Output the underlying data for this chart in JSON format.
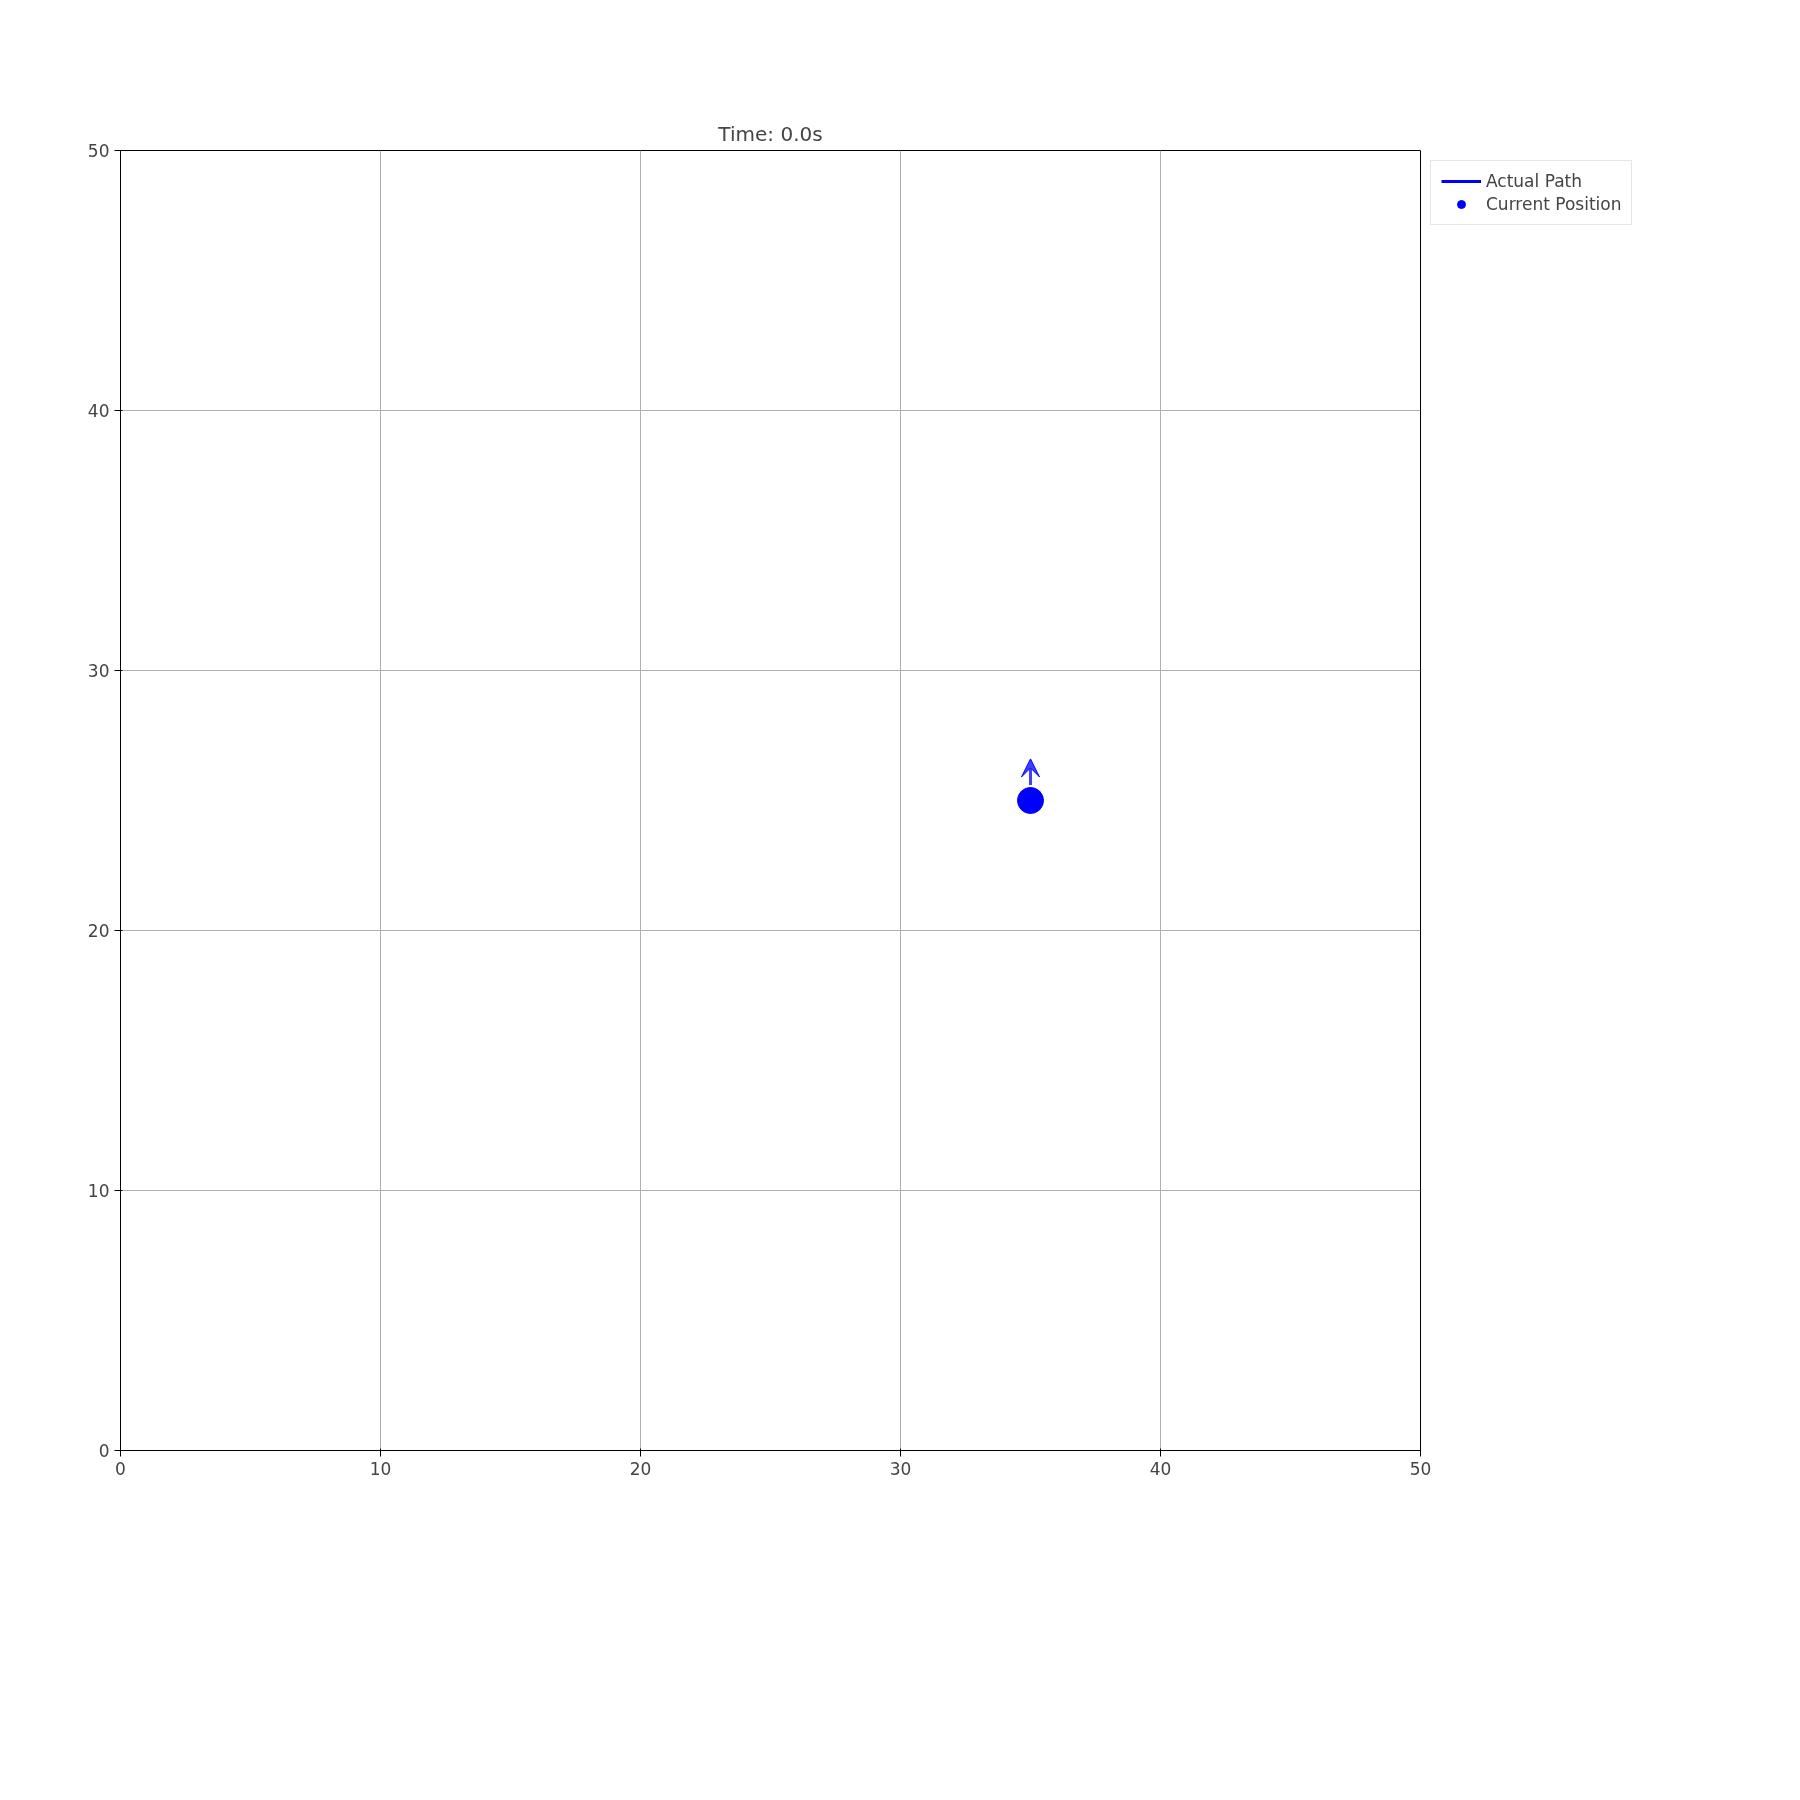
{
  "chart_data": {
    "type": "scatter",
    "title": "Time: 0.0s",
    "series": [
      {
        "name": "Actual Path",
        "type": "line",
        "color": "#0000ff"
      },
      {
        "name": "Current Position",
        "type": "scatter",
        "color": "#0000ff",
        "x": [
          35
        ],
        "values": [
          25
        ]
      }
    ],
    "xlim": [
      0,
      50
    ],
    "ylim": [
      0,
      50
    ],
    "xticks": [
      0,
      10,
      20,
      30,
      40,
      50
    ],
    "yticks": [
      0,
      10,
      20,
      30,
      40,
      50
    ],
    "grid": true,
    "legend": "top right",
    "marker": "circle"
  }
}
